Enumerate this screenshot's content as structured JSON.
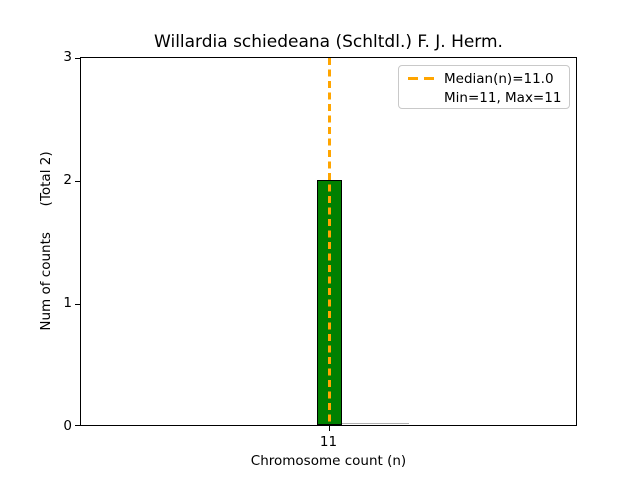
{
  "figure": {
    "title": "Willardia schiedeana (Schltdl.) F. J. Herm.",
    "xlabel": "Chromosome count (n)",
    "ylabel": "Num of counts      (Total 2)",
    "yticks": [
      "3",
      "2",
      "1",
      "0"
    ],
    "xticks": [
      "11"
    ],
    "legend": {
      "median_label": "Median(n)=11.0",
      "minmax_label": "Min=11, Max=11"
    }
  },
  "chart_data": {
    "type": "bar",
    "title": "Willardia schiedeana (Schltdl.) F. J. Herm.",
    "xlabel": "Chromosome count (n)",
    "ylabel": "Num of counts (Total 2)",
    "categories": [
      11
    ],
    "values": [
      2
    ],
    "total_counts": 2,
    "min": 11,
    "max": 11,
    "median": 11.0,
    "ylim": [
      0,
      3
    ],
    "yticks": [
      0,
      1,
      2,
      3
    ],
    "bar_color": "#008000",
    "bar_edge_color": "#000000",
    "median_line_color": "#FFA500",
    "median_line_style": "dashed",
    "legend_entries": [
      "Median(n)=11.0",
      "Min=11, Max=11"
    ],
    "legend_position": "upper right",
    "grid": false
  }
}
